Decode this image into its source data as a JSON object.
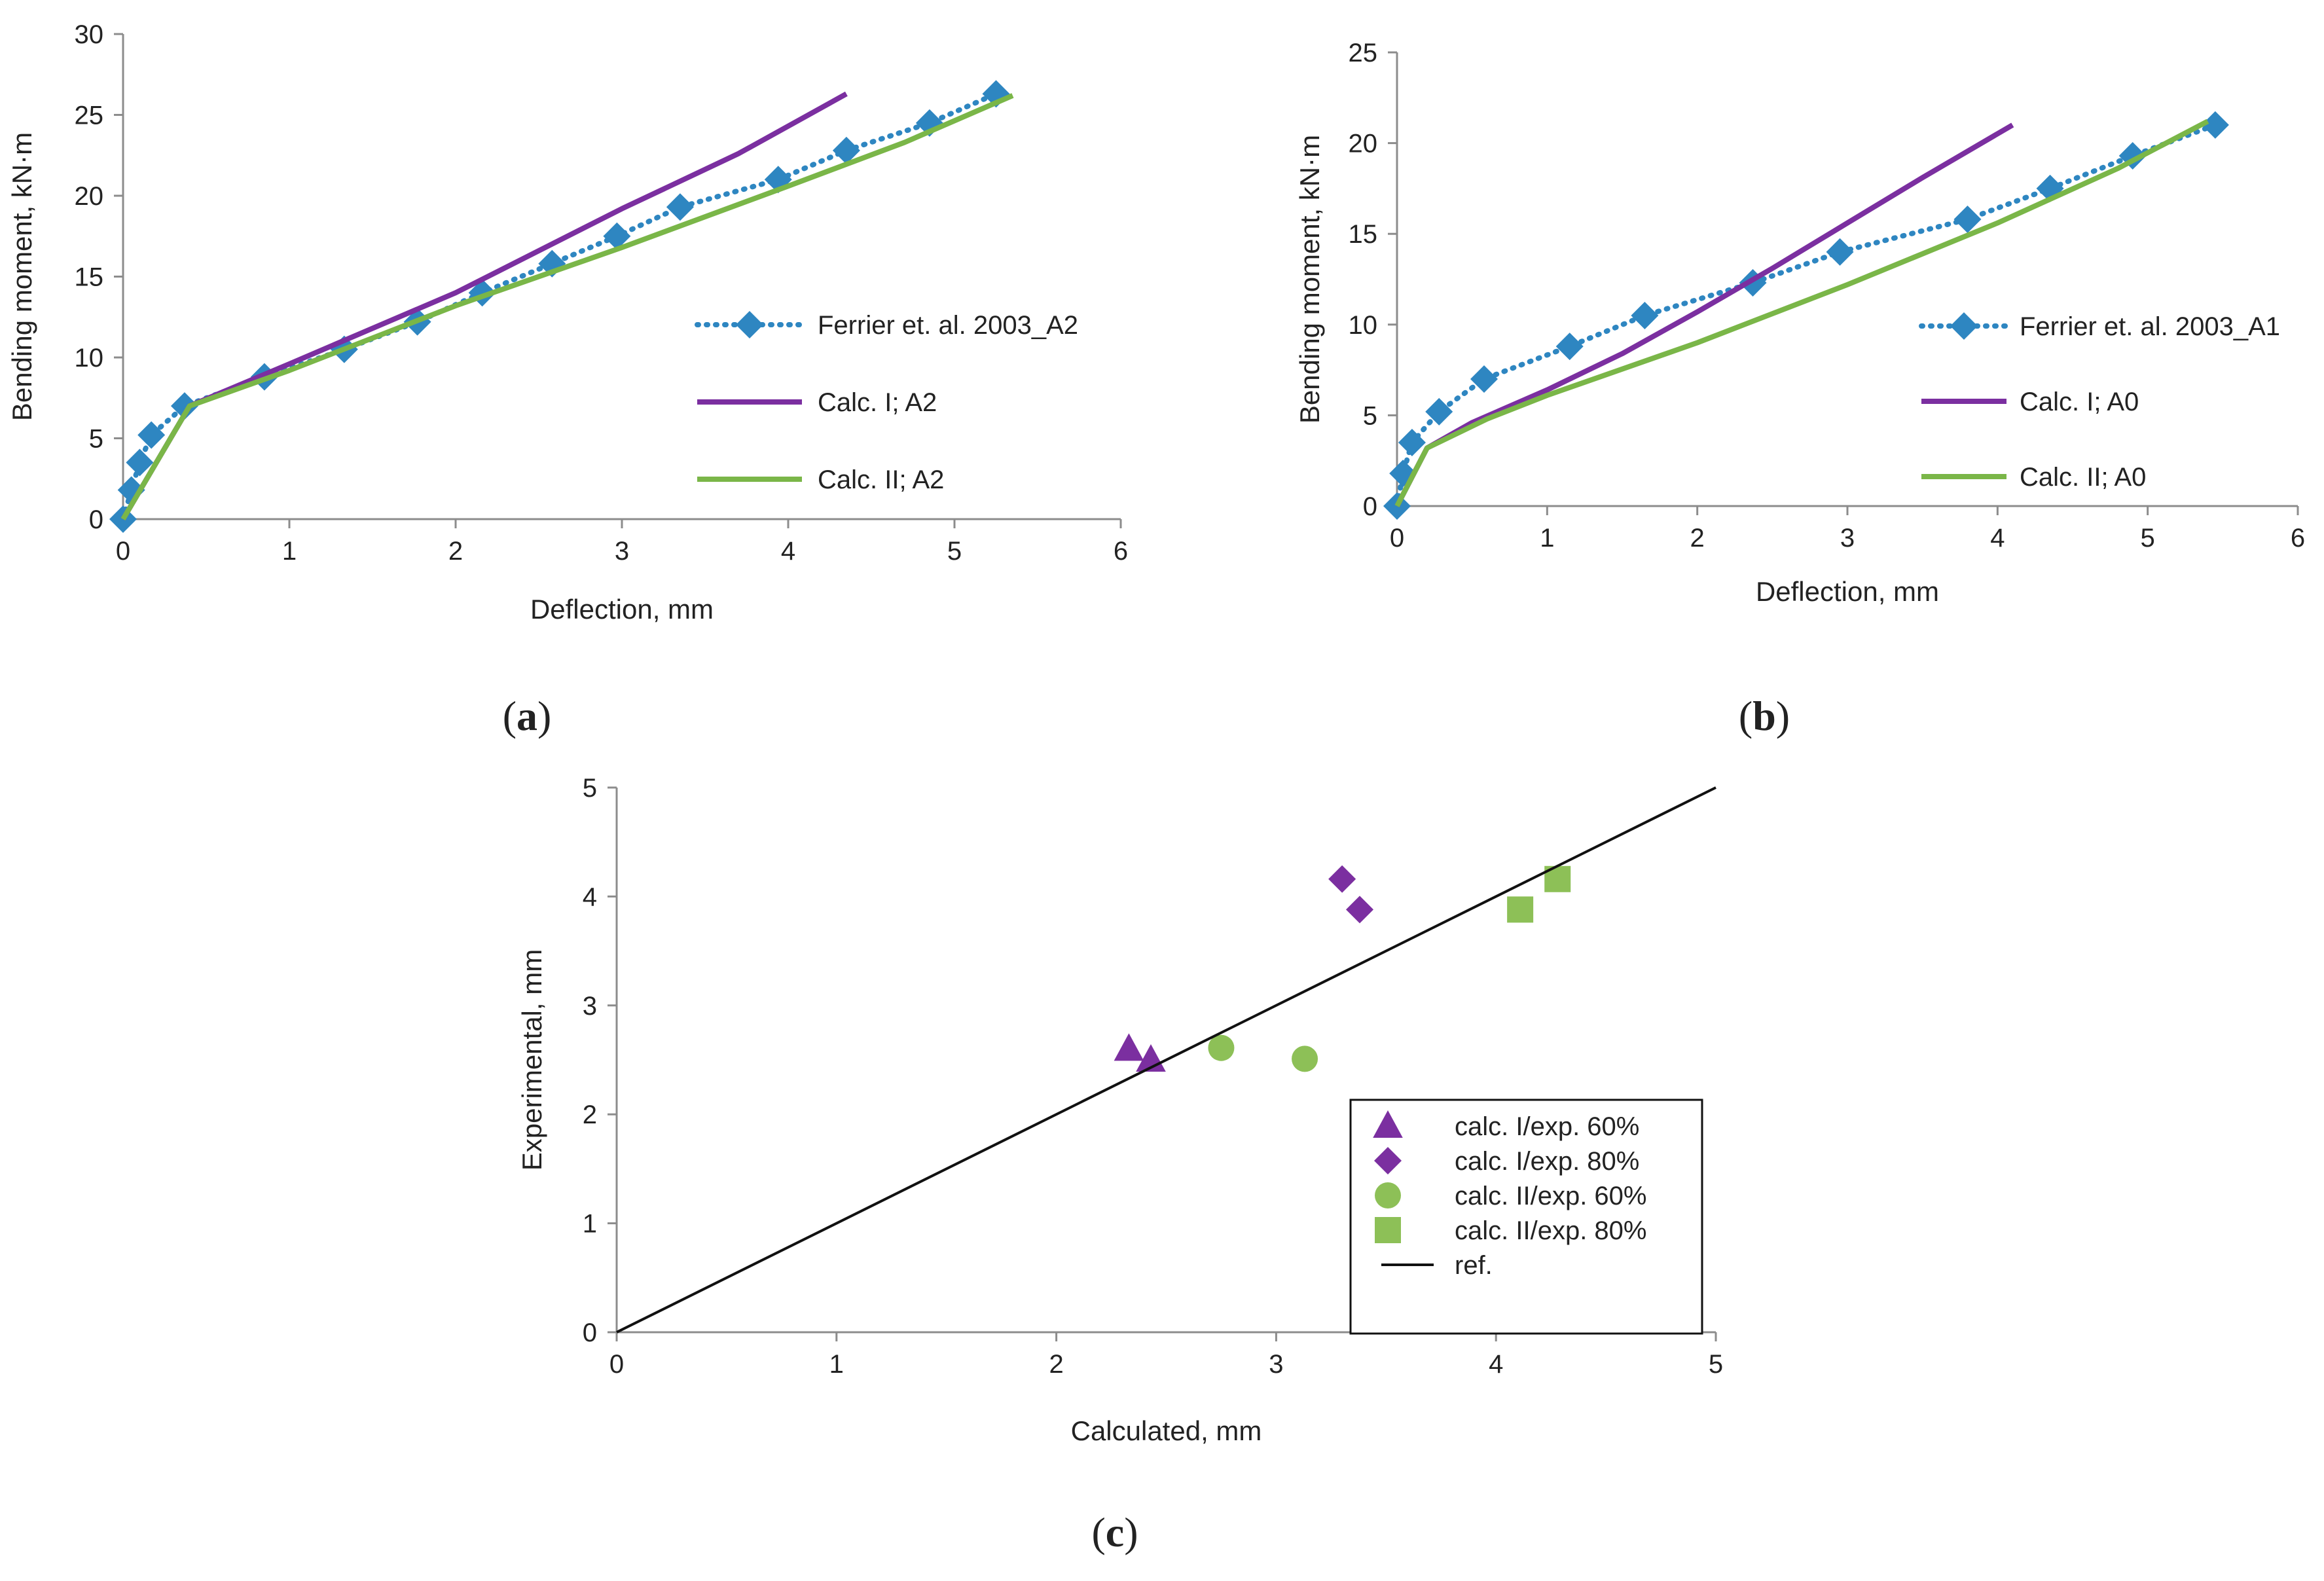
{
  "chart_data": [
    {
      "id": "a",
      "type": "line",
      "caption": {
        "open": "(",
        "letter": "a",
        "close": ")"
      },
      "title": "",
      "xlabel": "Deflection, mm",
      "ylabel": "Bending moment, kN·m",
      "xlim": [
        0,
        6
      ],
      "ylim": [
        0,
        30
      ],
      "xticks": [
        0,
        1,
        2,
        3,
        4,
        5,
        6
      ],
      "yticks": [
        0,
        5,
        10,
        15,
        20,
        25,
        30
      ],
      "grid": false,
      "legend_position": "right",
      "series": [
        {
          "name": "Ferrier et. al. 2003_A2",
          "style": "dotted-diamond",
          "color": "#2e86c1",
          "x": [
            0,
            0.05,
            0.1,
            0.17,
            0.37,
            0.85,
            1.33,
            1.77,
            2.16,
            2.58,
            2.97,
            3.35,
            3.94,
            4.35,
            4.85,
            5.25
          ],
          "y": [
            0,
            1.8,
            3.5,
            5.2,
            7.0,
            8.8,
            10.5,
            12.2,
            14.0,
            15.8,
            17.5,
            19.3,
            21.0,
            22.8,
            24.5,
            26.3
          ]
        },
        {
          "name": "Calc. I; A2",
          "style": "solid",
          "color": "#7b2fa0",
          "x": [
            0,
            0.4,
            1.0,
            2.0,
            3.0,
            3.7,
            4.35
          ],
          "y": [
            0,
            7.0,
            9.6,
            14.0,
            19.2,
            22.6,
            26.3
          ]
        },
        {
          "name": "Calc. II; A2",
          "style": "solid",
          "color": "#7ab648",
          "x": [
            0,
            0.4,
            1.0,
            2.0,
            3.0,
            4.0,
            4.7,
            5.35
          ],
          "y": [
            0,
            7.0,
            9.2,
            13.2,
            16.8,
            20.6,
            23.3,
            26.2
          ]
        }
      ]
    },
    {
      "id": "b",
      "type": "line",
      "caption": {
        "open": "(",
        "letter": "b",
        "close": ")"
      },
      "title": "",
      "xlabel": "Deflection, mm",
      "ylabel": "Bending moment, kN·m",
      "xlim": [
        0,
        6
      ],
      "ylim": [
        0,
        25
      ],
      "xticks": [
        0,
        1,
        2,
        3,
        4,
        5,
        6
      ],
      "yticks": [
        0,
        5,
        10,
        15,
        20,
        25
      ],
      "grid": false,
      "legend_position": "right",
      "series": [
        {
          "name": "Ferrier et. al. 2003_A1",
          "style": "dotted-diamond",
          "color": "#2e86c1",
          "x": [
            0,
            0.04,
            0.1,
            0.28,
            0.58,
            1.15,
            1.65,
            2.37,
            2.95,
            3.8,
            4.35,
            4.9,
            5.45
          ],
          "y": [
            0,
            1.8,
            3.5,
            5.2,
            7.0,
            8.8,
            10.5,
            12.3,
            14.0,
            15.8,
            17.5,
            19.3,
            21.0
          ]
        },
        {
          "name": "Calc. I; A0",
          "style": "solid",
          "color": "#7b2fa0",
          "x": [
            0,
            0.2,
            0.5,
            1.0,
            1.5,
            2.0,
            2.5,
            3.0,
            3.5,
            4.1
          ],
          "y": [
            0,
            3.2,
            4.6,
            6.4,
            8.4,
            10.7,
            13.1,
            15.6,
            18.1,
            21.0
          ]
        },
        {
          "name": "Calc. II; A0",
          "style": "solid",
          "color": "#7ab648",
          "x": [
            0,
            0.2,
            0.6,
            1.0,
            2.0,
            3.0,
            4.0,
            4.8,
            5.4
          ],
          "y": [
            0,
            3.2,
            4.8,
            6.1,
            9.0,
            12.2,
            15.6,
            18.6,
            21.2
          ]
        }
      ]
    },
    {
      "id": "c",
      "type": "scatter",
      "caption": {
        "open": "(",
        "letter": "c",
        "close": ")"
      },
      "title": "",
      "xlabel": "Calculated, mm",
      "ylabel": "Experimental, mm",
      "xlim": [
        0,
        5
      ],
      "ylim": [
        0,
        5
      ],
      "xticks": [
        0,
        1,
        2,
        3,
        4,
        5
      ],
      "yticks": [
        0,
        1,
        2,
        3,
        4,
        5
      ],
      "grid": false,
      "legend_position": "bottom-right",
      "series": [
        {
          "name": "calc. I/exp. 60%",
          "marker": "triangle",
          "color": "#7b2fa0",
          "x": [
            2.33,
            2.43
          ],
          "y": [
            2.6,
            2.5
          ]
        },
        {
          "name": "calc. I/exp. 80%",
          "marker": "diamond",
          "color": "#7b2fa0",
          "x": [
            3.3,
            3.38
          ],
          "y": [
            4.16,
            3.88
          ]
        },
        {
          "name": "calc. II/exp. 60%",
          "marker": "circle",
          "color": "#8dc057",
          "x": [
            2.75,
            3.13
          ],
          "y": [
            2.61,
            2.51
          ]
        },
        {
          "name": "calc. II/exp. 80%",
          "marker": "square",
          "color": "#8dc057",
          "x": [
            4.11,
            4.28
          ],
          "y": [
            3.88,
            4.16
          ]
        },
        {
          "name": "ref.",
          "marker": "line",
          "color": "#111111",
          "x": [
            0,
            5
          ],
          "y": [
            0,
            5
          ]
        }
      ]
    }
  ]
}
